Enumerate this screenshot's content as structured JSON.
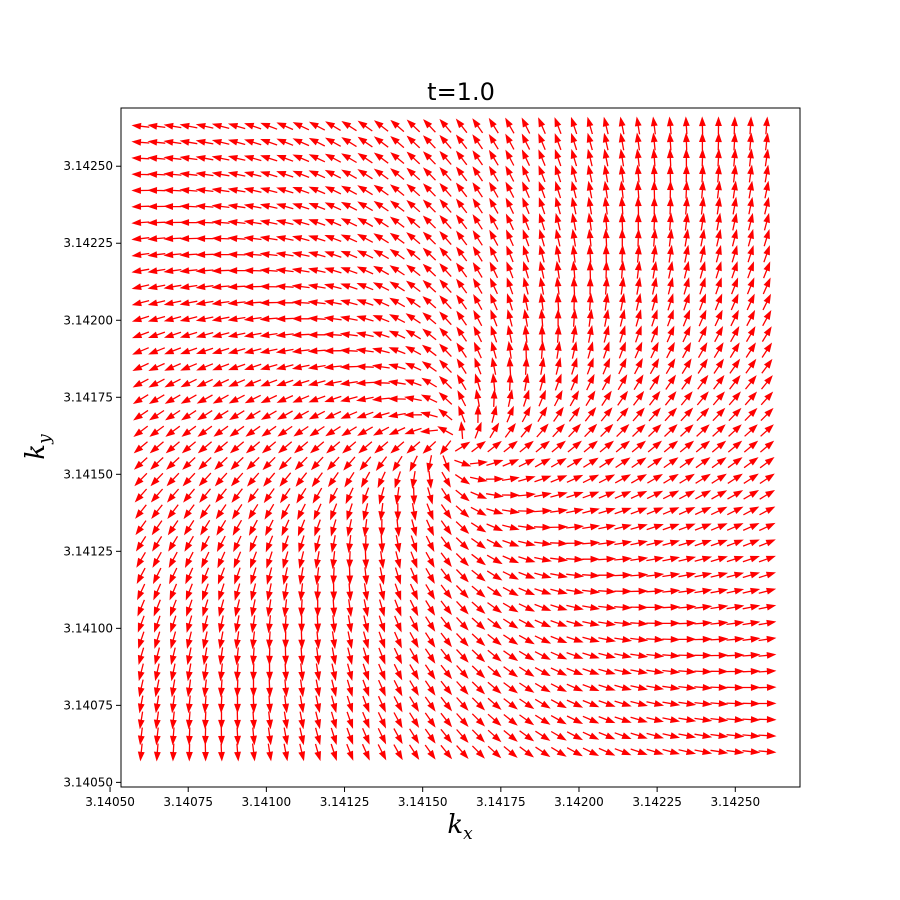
{
  "chart_data": {
    "type": "quiver",
    "title": "t=1.0",
    "xlabel": {
      "base": "k",
      "sub": "x"
    },
    "ylabel": {
      "base": "k",
      "sub": "y"
    },
    "xlim": [
      3.140535,
      3.142707
    ],
    "ylim": [
      3.140485,
      3.142689
    ],
    "xticks": [
      3.1405,
      3.14075,
      3.141,
      3.14125,
      3.1415,
      3.14175,
      3.142,
      3.14225,
      3.1425
    ],
    "yticks": [
      3.1405,
      3.14075,
      3.141,
      3.14125,
      3.1415,
      3.14175,
      3.142,
      3.14225,
      3.1425
    ],
    "xtick_labels": [
      "3.14050",
      "3.14075",
      "3.14100",
      "3.14125",
      "3.14150",
      "3.14175",
      "3.14200",
      "3.14225",
      "3.14250"
    ],
    "ytick_labels": [
      "3.14050",
      "3.14075",
      "3.14100",
      "3.14125",
      "3.14150",
      "3.14175",
      "3.14200",
      "3.14225",
      "3.14250"
    ],
    "grid": {
      "x_start": 3.1406,
      "x_end": 3.1426,
      "y_start": 3.1406,
      "y_end": 3.1426,
      "n": 40
    },
    "center": [
      3.141593,
      3.141593
    ],
    "field": "spiral",
    "arrow_color": "#ff0000",
    "grid_lines": false,
    "legend": "none"
  }
}
